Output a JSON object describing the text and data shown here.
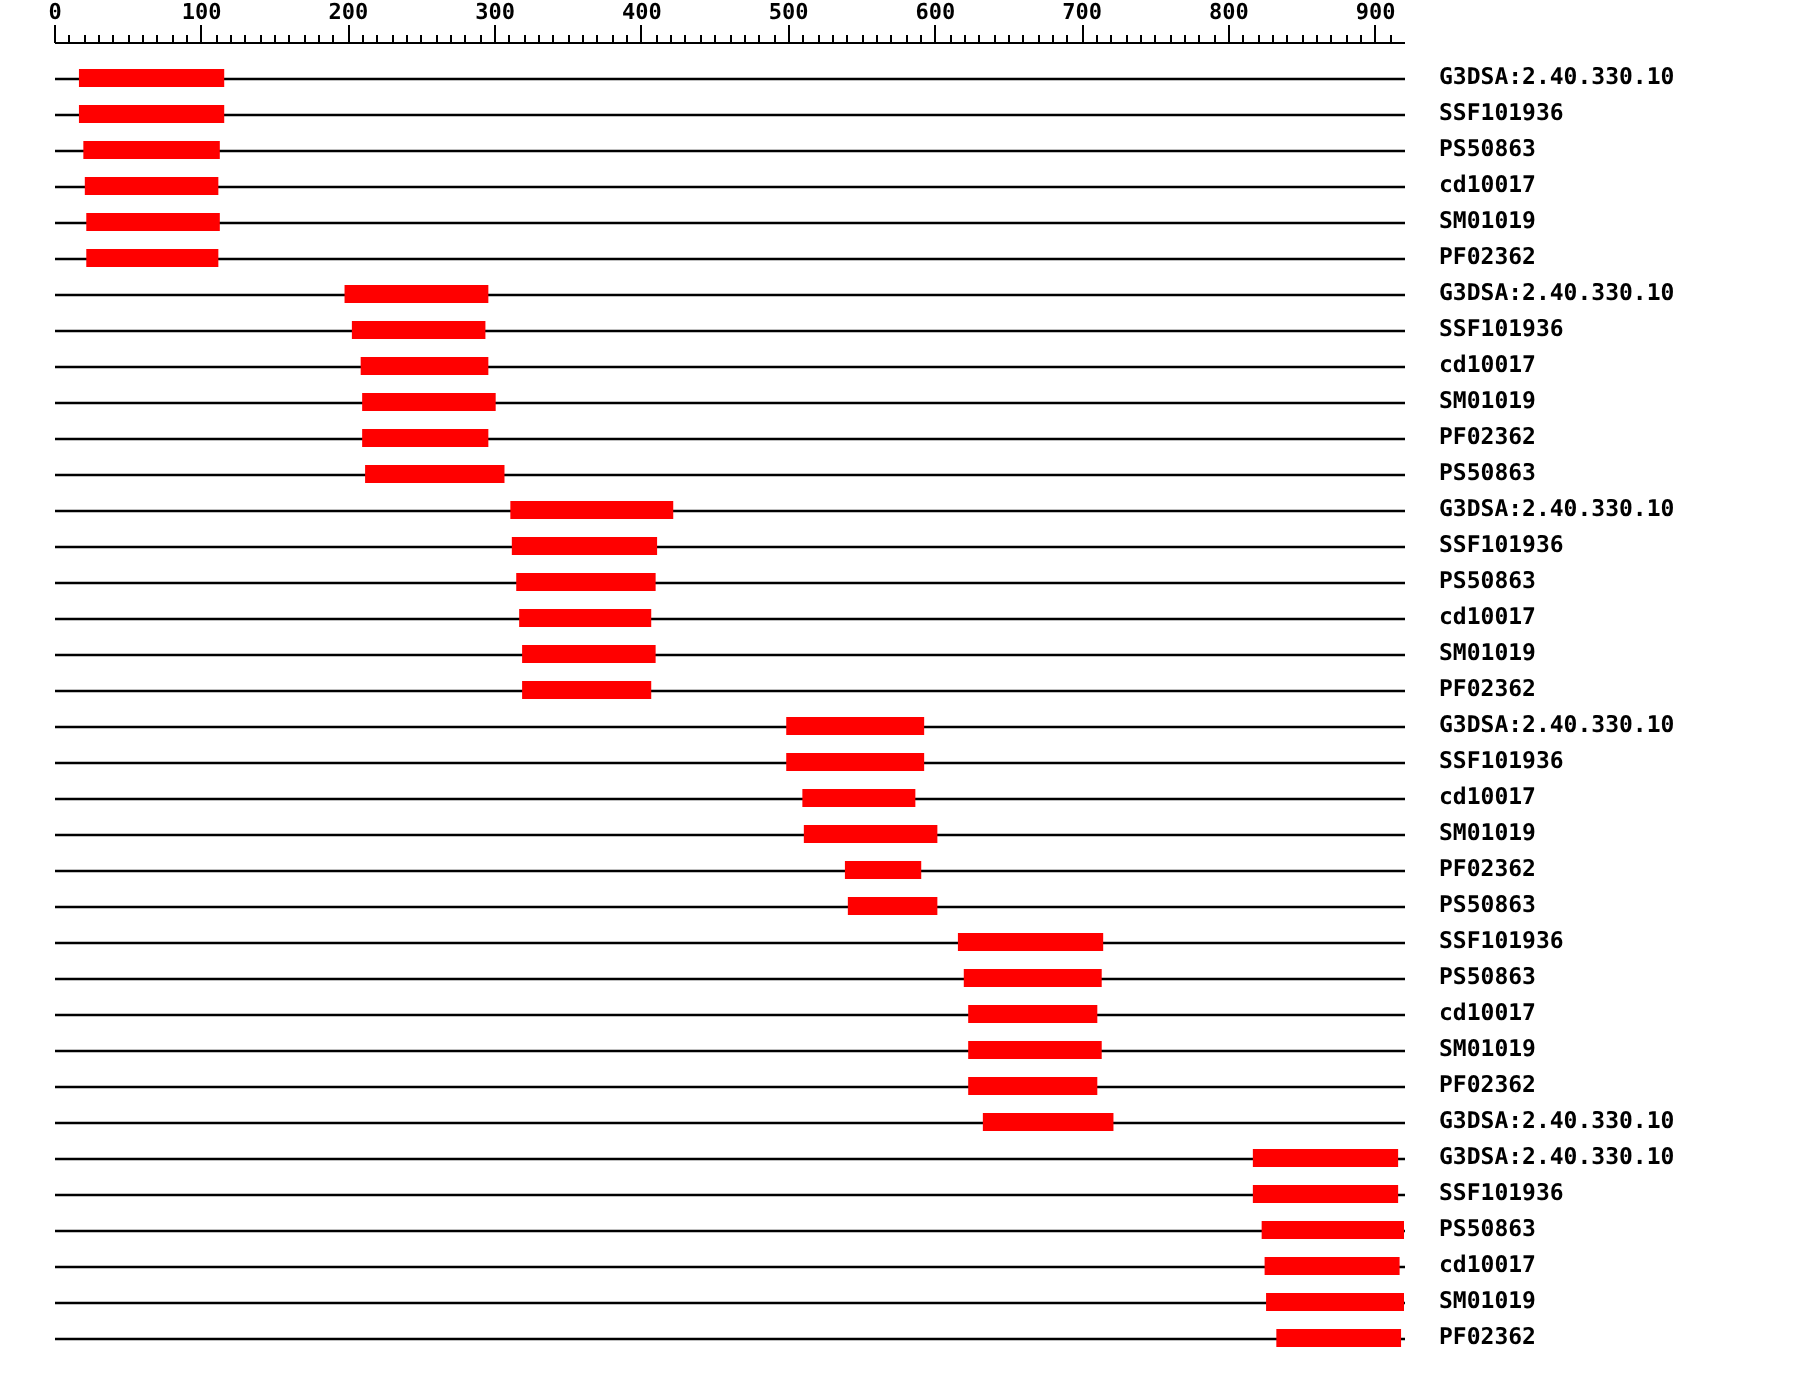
{
  "chart_data": {
    "type": "bar",
    "orientation": "horizontal",
    "color": "#ff0000",
    "grid": "y",
    "categories": [
      "G3DSA:2.40.330.10",
      "SSF101936",
      "PS50863",
      "cd10017",
      "SM01019",
      "PF02362",
      "G3DSA:2.40.330.10",
      "SSF101936",
      "cd10017",
      "SM01019",
      "PF02362",
      "PS50863",
      "G3DSA:2.40.330.10",
      "SSF101936",
      "PS50863",
      "cd10017",
      "SM01019",
      "PF02362",
      "G3DSA:2.40.330.10",
      "SSF101936",
      "cd10017",
      "SM01019",
      "PF02362",
      "PS50863",
      "SSF101936",
      "PS50863",
      "cd10017",
      "SM01019",
      "PF02362",
      "G3DSA:2.40.330.10",
      "G3DSA:2.40.330.10",
      "SSF101936",
      "PS50863",
      "cd10017",
      "SM01019",
      "PF02362"
    ],
    "base": [
      17,
      17,
      20,
      21,
      22,
      22,
      198,
      203,
      209,
      210,
      210,
      212,
      311,
      312,
      315,
      317,
      319,
      319,
      499,
      499,
      510,
      511,
      539,
      541,
      616,
      620,
      623,
      623,
      623,
      633,
      817,
      817,
      823,
      825,
      826,
      833
    ],
    "values": [
      99,
      99,
      93,
      91,
      91,
      90,
      98,
      91,
      87,
      91,
      86,
      95,
      111,
      99,
      95,
      90,
      91,
      88,
      94,
      94,
      77,
      91,
      52,
      61,
      99,
      94,
      88,
      91,
      88,
      89,
      99,
      99,
      97,
      92,
      94,
      85
    ],
    "xlim": [
      0,
      920
    ],
    "xticks": [
      0,
      {
        "value": 10,
        "label": null
      },
      {
        "value": 20,
        "label": null
      },
      {
        "value": 30,
        "label": null
      },
      {
        "value": 40,
        "label": null
      },
      {
        "value": 50,
        "label": null
      },
      {
        "value": 60,
        "label": null
      },
      {
        "value": 70,
        "label": null
      },
      {
        "value": 80,
        "label": null
      },
      {
        "value": 90,
        "label": null
      },
      100,
      {
        "value": 110,
        "label": null
      },
      {
        "value": 120,
        "label": null
      },
      {
        "value": 130,
        "label": null
      },
      {
        "value": 140,
        "label": null
      },
      {
        "value": 150,
        "label": null
      },
      {
        "value": 160,
        "label": null
      },
      {
        "value": 170,
        "label": null
      },
      {
        "value": 180,
        "label": null
      },
      {
        "value": 190,
        "label": null
      },
      200,
      {
        "value": 210,
        "label": null
      },
      {
        "value": 220,
        "label": null
      },
      {
        "value": 230,
        "label": null
      },
      {
        "value": 240,
        "label": null
      },
      {
        "value": 250,
        "label": null
      },
      {
        "value": 260,
        "label": null
      },
      {
        "value": 270,
        "label": null
      },
      {
        "value": 280,
        "label": null
      },
      {
        "value": 290,
        "label": null
      },
      300,
      {
        "value": 310,
        "label": null
      },
      {
        "value": 320,
        "label": null
      },
      {
        "value": 330,
        "label": null
      },
      {
        "value": 340,
        "label": null
      },
      {
        "value": 350,
        "label": null
      },
      {
        "value": 360,
        "label": null
      },
      {
        "value": 370,
        "label": null
      },
      {
        "value": 380,
        "label": null
      },
      {
        "value": 390,
        "label": null
      },
      400,
      {
        "value": 410,
        "label": null
      },
      {
        "value": 420,
        "label": null
      },
      {
        "value": 430,
        "label": null
      },
      {
        "value": 440,
        "label": null
      },
      {
        "value": 450,
        "label": null
      },
      {
        "value": 460,
        "label": null
      },
      {
        "value": 470,
        "label": null
      },
      {
        "value": 480,
        "label": null
      },
      {
        "value": 490,
        "label": null
      },
      500,
      {
        "value": 510,
        "label": null
      },
      {
        "value": 520,
        "label": null
      },
      {
        "value": 530,
        "label": null
      },
      {
        "value": 540,
        "label": null
      },
      {
        "value": 550,
        "label": null
      },
      {
        "value": 560,
        "label": null
      },
      {
        "value": 570,
        "label": null
      },
      {
        "value": 580,
        "label": null
      },
      {
        "value": 590,
        "label": null
      },
      600,
      {
        "value": 610,
        "label": null
      },
      {
        "value": 620,
        "label": null
      },
      {
        "value": 630,
        "label": null
      },
      {
        "value": 640,
        "label": null
      },
      {
        "value": 650,
        "label": null
      },
      {
        "value": 660,
        "label": null
      },
      {
        "value": 670,
        "label": null
      },
      {
        "value": 680,
        "label": null
      },
      {
        "value": 690,
        "label": null
      },
      700,
      {
        "value": 710,
        "label": null
      },
      {
        "value": 720,
        "label": null
      },
      {
        "value": 730,
        "label": null
      },
      {
        "value": 740,
        "label": null
      },
      {
        "value": 750,
        "label": null
      },
      {
        "value": 760,
        "label": null
      },
      {
        "value": 770,
        "label": null
      },
      {
        "value": 780,
        "label": null
      },
      {
        "value": 790,
        "label": null
      },
      800,
      {
        "value": 810,
        "label": null
      },
      {
        "value": 820,
        "label": null
      },
      {
        "value": 830,
        "label": null
      },
      {
        "value": 840,
        "label": null
      },
      {
        "value": 850,
        "label": null
      },
      {
        "value": 860,
        "label": null
      },
      {
        "value": 870,
        "label": null
      },
      {
        "value": 880,
        "label": null
      },
      {
        "value": 890,
        "label": null
      },
      900,
      {
        "value": 910,
        "label": null
      }
    ]
  }
}
